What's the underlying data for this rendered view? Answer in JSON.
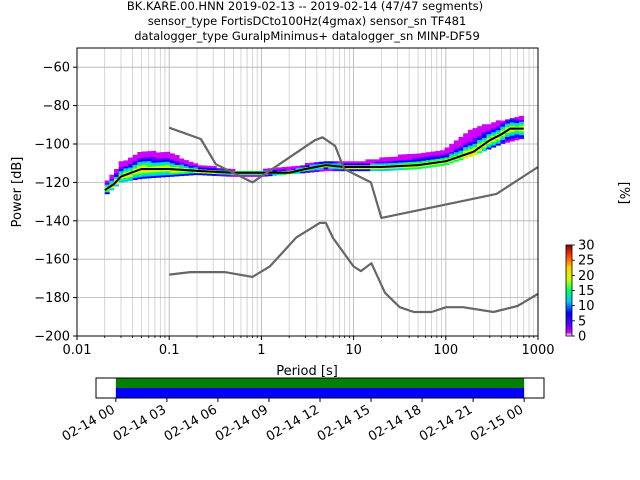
{
  "figure": {
    "title_lines": [
      "BK.KARE.00.HNN   2019-02-13 -- 2019-02-14  (47/47 segments)",
      "sensor_type FortisDCto100Hz(4gmax) sensor_sn TF481",
      "datalogger_type GuralpMinimus+ datalogger_sn MINP-DF59"
    ]
  },
  "chart_data": [
    {
      "type": "heatmap",
      "title": "BK.KARE.00.HNN   2019-02-13 -- 2019-02-14  (47/47 segments)",
      "xlabel": "Period [s]",
      "ylabel": "Power [dB]",
      "xscale": "log",
      "xlim": [
        0.01,
        1000
      ],
      "ylim": [
        -200,
        -50
      ],
      "grid": true,
      "x_ticks": [
        0.01,
        0.1,
        1,
        10,
        100,
        1000
      ],
      "x_tick_labels": [
        "0.01",
        "0.1",
        "1",
        "10",
        "100",
        "1000"
      ],
      "y_ticks": [
        -200,
        -180,
        -160,
        -140,
        -120,
        -100,
        -80,
        -60
      ],
      "y_tick_labels": [
        "−200",
        "−180",
        "−160",
        "−140",
        "−120",
        "−100",
        "−80",
        "−60"
      ],
      "colorbar": {
        "label": "[%]",
        "range": [
          0,
          30
        ],
        "ticks": [
          0,
          5,
          10,
          15,
          20,
          25,
          30
        ],
        "tick_labels": [
          "0",
          "5",
          "10",
          "15",
          "20",
          "25",
          "30"
        ],
        "colormap": [
          "#ffffff",
          "#d000ff",
          "#5a00ff",
          "#0000ff",
          "#00c8ff",
          "#00ff60",
          "#c8ff00",
          "#ffd000",
          "#ff4000",
          "#8b0000"
        ]
      },
      "series": [
        {
          "name": "mode",
          "color": "#000000",
          "x": [
            0.02,
            0.025,
            0.03,
            0.05,
            0.1,
            0.2,
            0.5,
            1,
            2,
            3,
            5,
            8,
            10,
            20,
            50,
            100,
            200,
            300,
            400,
            500,
            700
          ],
          "y": [
            -124,
            -121,
            -117,
            -113,
            -113,
            -114,
            -115,
            -115,
            -115,
            -113,
            -111,
            -112,
            -112,
            -112,
            -111,
            -109,
            -104,
            -98,
            -95,
            -92,
            -92
          ]
        },
        {
          "name": "high_noise_model",
          "color": "#666666",
          "x": [
            0.1,
            0.22,
            0.32,
            0.8,
            3.8,
            4.6,
            6.3,
            7.9,
            15.4,
            20,
            354.8,
            1000
          ],
          "y": [
            -91.5,
            -97.4,
            -110.5,
            -120,
            -98,
            -96.5,
            -101,
            -113,
            -120,
            -138.5,
            -126,
            -112
          ]
        },
        {
          "name": "low_noise_model",
          "color": "#666666",
          "x": [
            0.1,
            0.17,
            0.4,
            0.8,
            1.24,
            2.4,
            4.3,
            5.0,
            6.0,
            10.0,
            12.0,
            15.6,
            21.9,
            31.6,
            45.0,
            70.0,
            101.0,
            154.0,
            328.0,
            600.0,
            1000.0
          ],
          "y": [
            -168,
            -166.7,
            -166.7,
            -169.2,
            -163.7,
            -148.6,
            -141.1,
            -141.1,
            -149,
            -163.8,
            -166.2,
            -162.1,
            -177.5,
            -185,
            -187.5,
            -187.5,
            -185,
            -185,
            -187.5,
            -184.4,
            -178
          ]
        }
      ],
      "density_band": [
        {
          "x": 0.02,
          "ymin": -127,
          "ymax": -121
        },
        {
          "x": 0.03,
          "ymin": -120,
          "ymax": -110
        },
        {
          "x": 0.05,
          "ymin": -118,
          "ymax": -104
        },
        {
          "x": 0.1,
          "ymin": -117,
          "ymax": -105
        },
        {
          "x": 0.2,
          "ymin": -116,
          "ymax": -111
        },
        {
          "x": 0.5,
          "ymin": -117,
          "ymax": -114
        },
        {
          "x": 1,
          "ymin": -117,
          "ymax": -114
        },
        {
          "x": 3,
          "ymin": -115,
          "ymax": -111
        },
        {
          "x": 5,
          "ymin": -114,
          "ymax": -109
        },
        {
          "x": 10,
          "ymin": -114,
          "ymax": -110
        },
        {
          "x": 20,
          "ymin": -114,
          "ymax": -108
        },
        {
          "x": 50,
          "ymin": -113,
          "ymax": -105
        },
        {
          "x": 100,
          "ymin": -111,
          "ymax": -103
        },
        {
          "x": 200,
          "ymin": -106,
          "ymax": -92
        },
        {
          "x": 400,
          "ymin": -100,
          "ymax": -88
        },
        {
          "x": 700,
          "ymin": -97,
          "ymax": -86
        }
      ]
    },
    {
      "type": "timeline",
      "tick_labels": [
        "02-14 00",
        "02-14 03",
        "02-14 06",
        "02-14 09",
        "02-14 12",
        "02-14 15",
        "02-14 18",
        "02-14 21",
        "02-15 00"
      ],
      "x": [
        "2019-02-14 00",
        "2019-02-14 03",
        "2019-02-14 06",
        "2019-02-14 09",
        "2019-02-14 12",
        "2019-02-14 15",
        "2019-02-14 18",
        "2019-02-14 21",
        "2019-02-15 00"
      ],
      "xlim": [
        "2019-02-13 22:50",
        "2019-02-15 01:10"
      ],
      "coverage": {
        "start": "2019-02-14 00",
        "end": "2019-02-15 00",
        "colors": [
          "#008000",
          "#0000ff"
        ]
      }
    }
  ]
}
